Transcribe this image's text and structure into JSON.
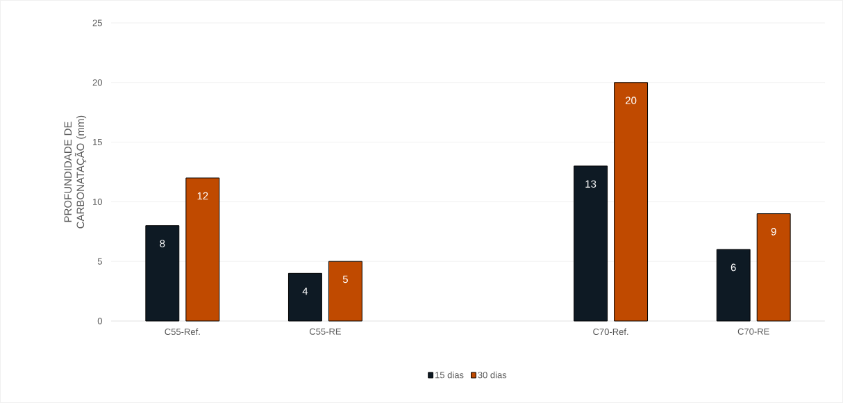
{
  "chart_data": {
    "type": "bar",
    "ylabel": "PROFUNDIDADE DE CARBONATAÇÃO (mm)",
    "categories": [
      "C55-Ref.",
      "C55-RE",
      null,
      "C70-Ref.",
      "C70-RE"
    ],
    "series": [
      {
        "name": "15 dias",
        "color": "#0e1a24",
        "values": [
          8,
          4,
          null,
          13,
          6
        ]
      },
      {
        "name": "30 dias",
        "color": "#c04a00",
        "values": [
          12,
          5,
          null,
          20,
          9
        ]
      }
    ],
    "ylim": [
      0,
      25
    ],
    "yticks": [
      0,
      5,
      10,
      15,
      20,
      25
    ],
    "grid": "y",
    "legend": "bottom",
    "data_labels": true
  }
}
